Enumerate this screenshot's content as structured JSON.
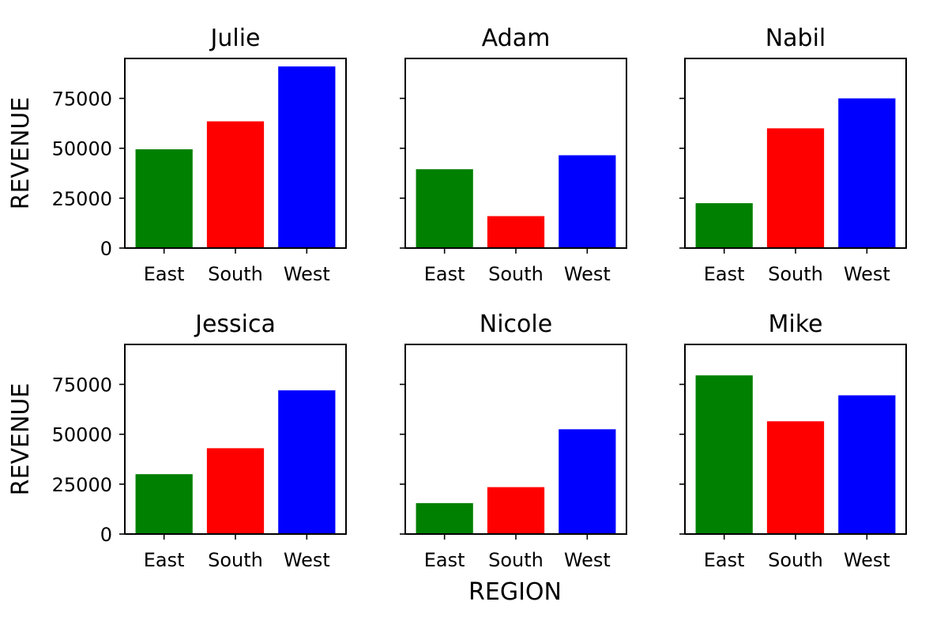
{
  "chart_data": {
    "type": "bar",
    "layout": "2x3 grid of subplots, shared y-axis",
    "categories": [
      "East",
      "South",
      "West"
    ],
    "colors": [
      "#008000",
      "#ff0000",
      "#0000ff"
    ],
    "xlabel": "REGION",
    "ylabel": "REVENUE",
    "ylim": [
      0,
      95000
    ],
    "yticks": [
      0,
      25000,
      50000,
      75000
    ],
    "grid": false,
    "legend": "none",
    "panels": [
      {
        "title": "Julie",
        "values": [
          49500,
          63500,
          91000
        ]
      },
      {
        "title": "Adam",
        "values": [
          39500,
          16000,
          46500
        ]
      },
      {
        "title": "Nabil",
        "values": [
          22500,
          60000,
          75000
        ]
      },
      {
        "title": "Jessica",
        "values": [
          30000,
          43000,
          72000
        ]
      },
      {
        "title": "Nicole",
        "values": [
          15500,
          23500,
          52500
        ]
      },
      {
        "title": "Mike",
        "values": [
          79500,
          56500,
          69500
        ]
      }
    ]
  }
}
